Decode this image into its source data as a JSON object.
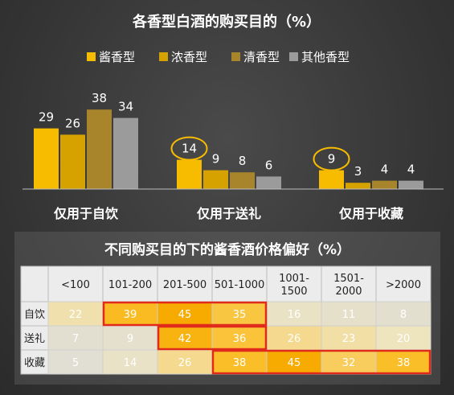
{
  "chart_data": [
    {
      "type": "bar",
      "title": "各香型白酒的购买目的（%）",
      "categories": [
        "仅用于自饮",
        "仅用于送礼",
        "仅用于收藏"
      ],
      "series": [
        {
          "name": "酱香型",
          "values": [
            29,
            14,
            9
          ]
        },
        {
          "name": "浓香型",
          "values": [
            26,
            9,
            3
          ]
        },
        {
          "name": "清香型",
          "values": [
            38,
            8,
            4
          ]
        },
        {
          "name": "其他香型",
          "values": [
            34,
            6,
            4
          ]
        }
      ],
      "ylim": [
        0,
        45
      ],
      "legend": "top",
      "grid": false,
      "colors": [
        "#f7bb00",
        "#d6a200",
        "#a8852a",
        "#9b9b9b"
      ],
      "circled": [
        {
          "category": "仅用于送礼",
          "series": "酱香型"
        },
        {
          "category": "仅用于收藏",
          "series": "酱香型"
        }
      ]
    },
    {
      "type": "heatmap",
      "title": "不同购买目的下的酱香酒价格偏好（%）",
      "columns": [
        "<100",
        "101-200",
        "201-500",
        "501-1000",
        "1001-\n1500",
        "1501-\n2000",
        ">2000"
      ],
      "rows": [
        "自饮",
        "送礼",
        "收藏"
      ],
      "values": [
        [
          22,
          39,
          45,
          35,
          16,
          11,
          8
        ],
        [
          7,
          9,
          42,
          36,
          26,
          23,
          20
        ],
        [
          5,
          14,
          26,
          38,
          45,
          32,
          38
        ]
      ],
      "highlighted": [
        {
          "row": "自饮",
          "columns": [
            "101-200",
            "201-500",
            "501-1000"
          ]
        },
        {
          "row": "送礼",
          "columns": [
            "201-500",
            "501-1000"
          ]
        },
        {
          "row": "收藏",
          "columns": [
            "501-1000",
            "1001-\n1500",
            "1501-\n2000",
            ">2000"
          ]
        }
      ],
      "highlight_color": "#e02a1c"
    }
  ]
}
